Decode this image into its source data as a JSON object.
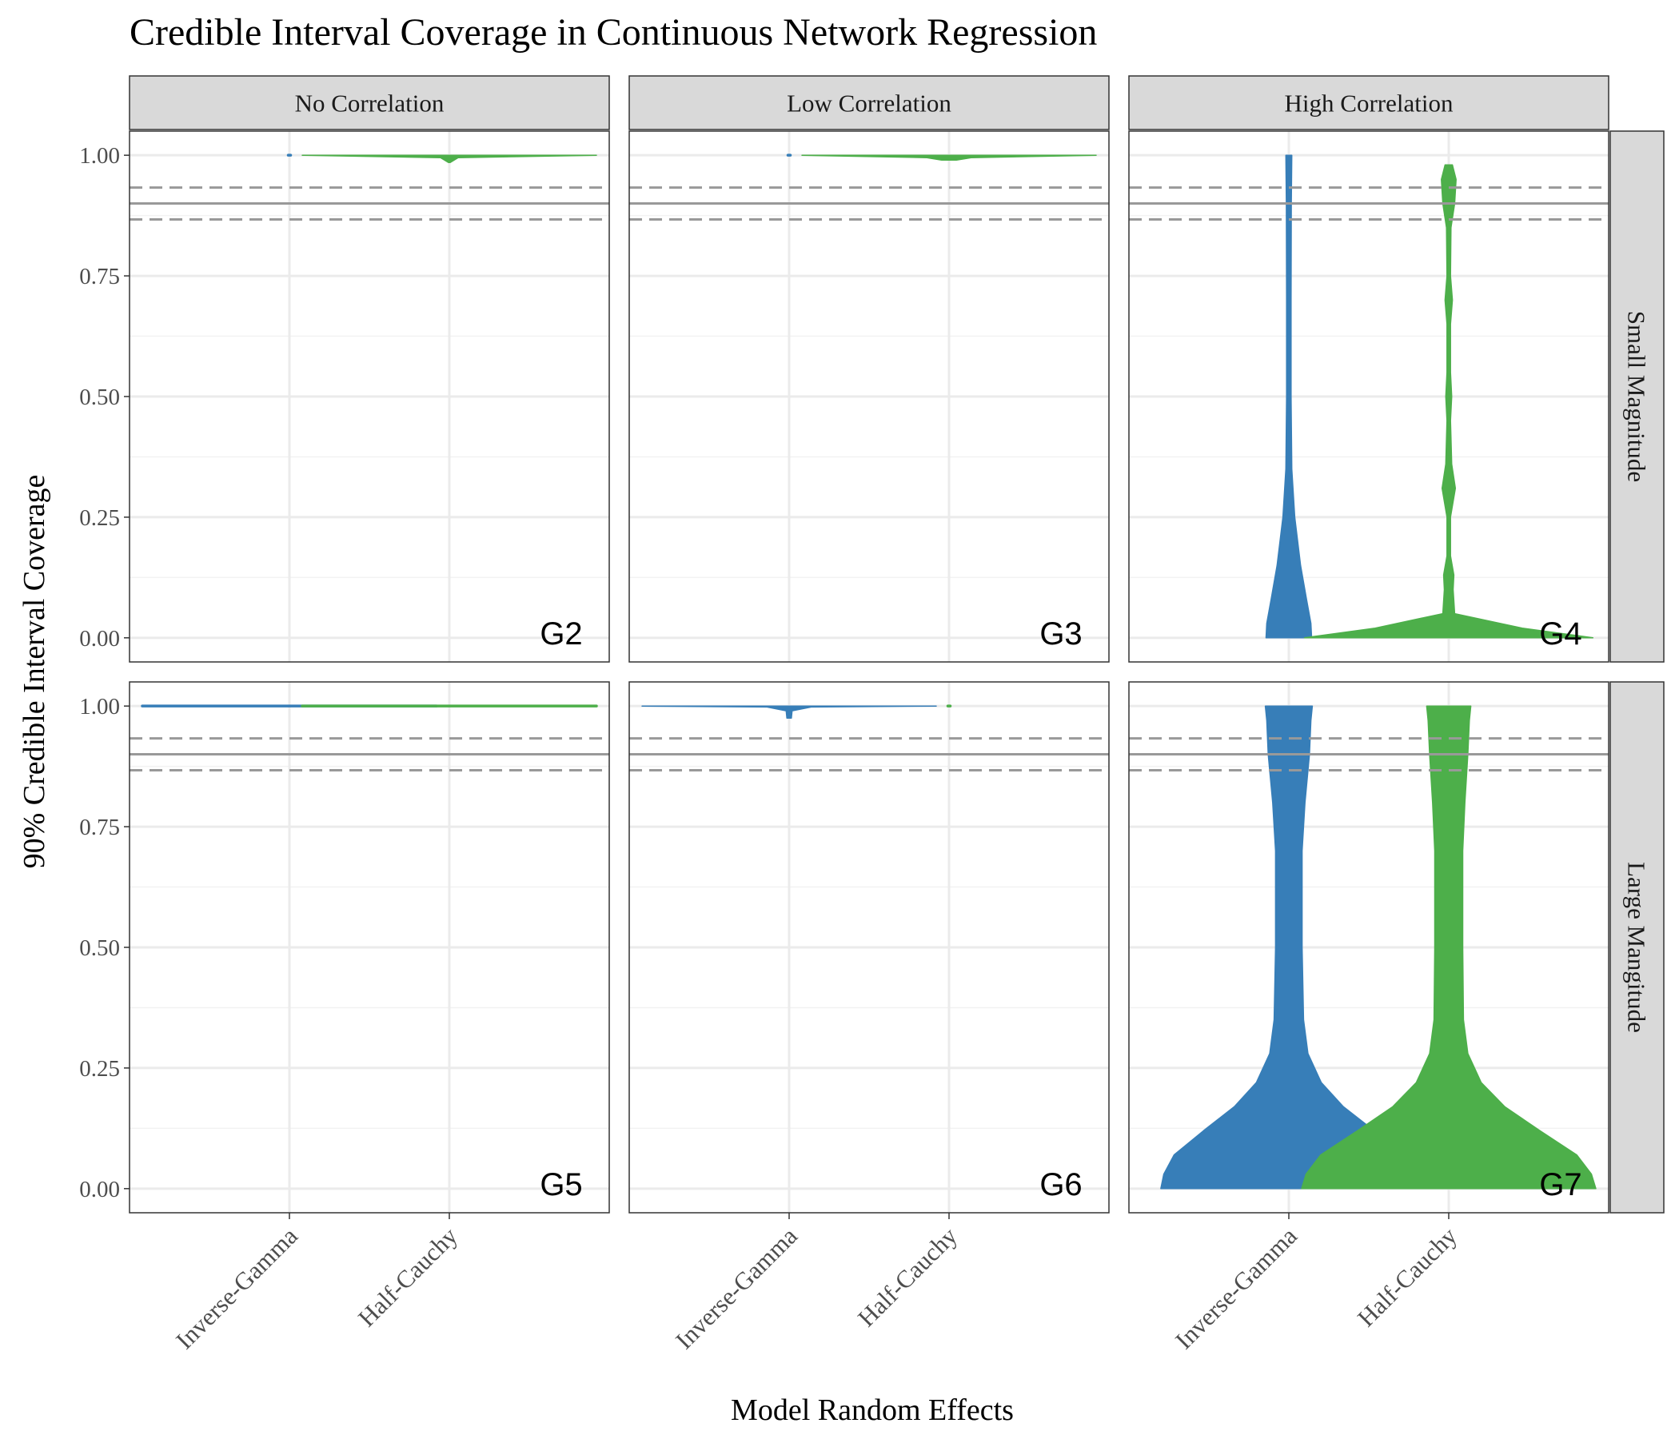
{
  "chart_data": {
    "type": "violin",
    "title": "Credible Interval Coverage in Continuous Network Regression",
    "xlabel": "Model Random Effects",
    "ylabel": "90% Credible Interval Coverage",
    "ylim": [
      -0.05,
      1.05
    ],
    "yticks": [
      "0.00",
      "0.25",
      "0.50",
      "0.75",
      "1.00"
    ],
    "ytick_values": [
      0,
      0.25,
      0.5,
      0.75,
      1.0
    ],
    "categories": [
      "Inverse-Gamma",
      "Half-Cauchy"
    ],
    "columns": [
      "No Correlation",
      "Low Correlation",
      "High Correlation"
    ],
    "rows": [
      "Small Magnitude",
      "Large Mangitude"
    ],
    "reference_lines": {
      "solid": 0.9,
      "dashed": [
        0.867,
        0.933
      ]
    },
    "colors": {
      "Inverse-Gamma": "#377eb8",
      "Half-Cauchy": "#4daf4a",
      "reference": "#999999",
      "strip": "#d9d9d9",
      "grid": "#ebebeb"
    },
    "panels": [
      {
        "label": "G2",
        "row": 0,
        "col": 0,
        "violins": [
          {
            "category": "Inverse-Gamma",
            "profile": [
              [
                1.0,
                0.003
              ]
            ]
          },
          {
            "category": "Half-Cauchy",
            "profile": [
              [
                0.985,
                0.006
              ],
              [
                0.995,
                0.06
              ],
              [
                1.0,
                1.0
              ]
            ]
          }
        ]
      },
      {
        "label": "G3",
        "row": 0,
        "col": 1,
        "violins": [
          {
            "category": "Inverse-Gamma",
            "profile": [
              [
                1.0,
                0.003
              ]
            ]
          },
          {
            "category": "Half-Cauchy",
            "profile": [
              [
                0.99,
                0.05
              ],
              [
                0.995,
                0.15
              ],
              [
                1.0,
                1.0
              ]
            ]
          }
        ]
      },
      {
        "label": "G4",
        "row": 0,
        "col": 2,
        "violins": [
          {
            "category": "Inverse-Gamma",
            "profile": [
              [
                0.0,
                0.155
              ],
              [
                0.03,
                0.15
              ],
              [
                0.08,
                0.12
              ],
              [
                0.15,
                0.08
              ],
              [
                0.25,
                0.04
              ],
              [
                0.35,
                0.02
              ],
              [
                0.5,
                0.015
              ],
              [
                0.7,
                0.015
              ],
              [
                0.9,
                0.017
              ],
              [
                1.0,
                0.02
              ]
            ]
          },
          {
            "category": "Half-Cauchy",
            "profile": [
              [
                0.0,
                0.98
              ],
              [
                0.02,
                0.5
              ],
              [
                0.05,
                0.04
              ],
              [
                0.1,
                0.03
              ],
              [
                0.13,
                0.035
              ],
              [
                0.17,
                0.012
              ],
              [
                0.25,
                0.012
              ],
              [
                0.31,
                0.045
              ],
              [
                0.36,
                0.02
              ],
              [
                0.45,
                0.012
              ],
              [
                0.5,
                0.02
              ],
              [
                0.55,
                0.012
              ],
              [
                0.65,
                0.012
              ],
              [
                0.7,
                0.025
              ],
              [
                0.75,
                0.012
              ],
              [
                0.85,
                0.015
              ],
              [
                0.9,
                0.04
              ],
              [
                0.95,
                0.05
              ],
              [
                0.98,
                0.025
              ]
            ]
          }
        ]
      },
      {
        "label": "G5",
        "row": 1,
        "col": 0,
        "violins": [
          {
            "category": "Inverse-Gamma",
            "profile": [
              [
                1.0,
                1.0
              ]
            ]
          },
          {
            "category": "Half-Cauchy",
            "profile": [
              [
                1.0,
                1.0
              ]
            ]
          }
        ]
      },
      {
        "label": "G6",
        "row": 1,
        "col": 1,
        "violins": [
          {
            "category": "Inverse-Gamma",
            "profile": [
              [
                0.975,
                0.015
              ],
              [
                0.99,
                0.02
              ],
              [
                0.998,
                0.15
              ],
              [
                1.0,
                1.0
              ]
            ]
          },
          {
            "category": "Half-Cauchy",
            "profile": [
              [
                1.0,
                0.006
              ]
            ]
          }
        ]
      },
      {
        "label": "G7",
        "row": 1,
        "col": 2,
        "violins": [
          {
            "category": "Inverse-Gamma",
            "profile": [
              [
                0.0,
                0.87
              ],
              [
                0.03,
                0.85
              ],
              [
                0.07,
                0.78
              ],
              [
                0.12,
                0.58
              ],
              [
                0.17,
                0.37
              ],
              [
                0.22,
                0.22
              ],
              [
                0.28,
                0.13
              ],
              [
                0.35,
                0.1
              ],
              [
                0.5,
                0.09
              ],
              [
                0.7,
                0.09
              ],
              [
                0.8,
                0.11
              ],
              [
                0.9,
                0.14
              ],
              [
                0.97,
                0.15
              ],
              [
                1.0,
                0.16
              ]
            ]
          },
          {
            "category": "Half-Cauchy",
            "profile": [
              [
                0.0,
                1.0
              ],
              [
                0.03,
                0.97
              ],
              [
                0.07,
                0.87
              ],
              [
                0.12,
                0.62
              ],
              [
                0.17,
                0.38
              ],
              [
                0.22,
                0.22
              ],
              [
                0.28,
                0.13
              ],
              [
                0.35,
                0.1
              ],
              [
                0.5,
                0.095
              ],
              [
                0.7,
                0.095
              ],
              [
                0.8,
                0.11
              ],
              [
                0.9,
                0.13
              ],
              [
                0.97,
                0.14
              ],
              [
                1.0,
                0.15
              ]
            ]
          }
        ]
      }
    ]
  }
}
